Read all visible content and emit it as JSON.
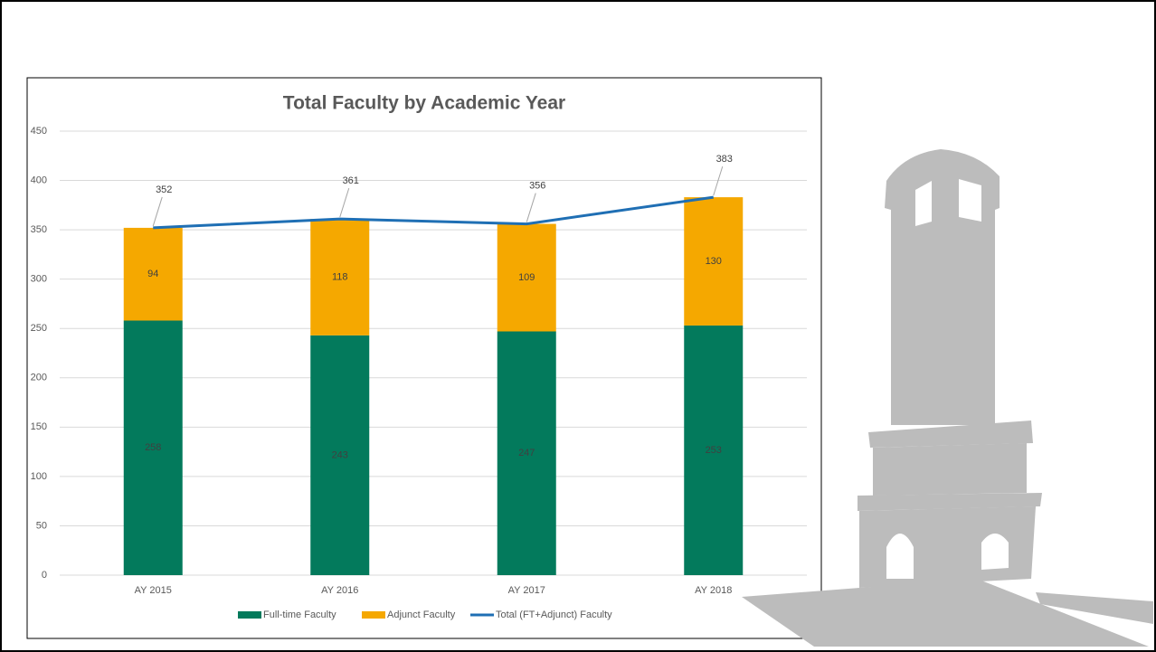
{
  "chart_data": {
    "type": "bar",
    "stacked": true,
    "title": "Total Faculty by Academic Year",
    "categories": [
      "AY 2015",
      "AY 2016",
      "AY 2017",
      "AY 2018"
    ],
    "series": [
      {
        "name": "Full-time Faculty",
        "color": "#037a5c",
        "values": [
          258,
          243,
          247,
          253
        ]
      },
      {
        "name": "Adjunct Faculty",
        "color": "#f5a800",
        "values": [
          94,
          118,
          109,
          130
        ]
      },
      {
        "name": "Total (FT+Adjunct) Faculty",
        "type": "line",
        "color": "#1f6fb4",
        "values": [
          352,
          361,
          356,
          383
        ]
      }
    ],
    "ylim": [
      0,
      450
    ],
    "yticks": [
      0,
      50,
      100,
      150,
      200,
      250,
      300,
      350,
      400,
      450
    ],
    "grid": true,
    "legend": "bottom"
  }
}
